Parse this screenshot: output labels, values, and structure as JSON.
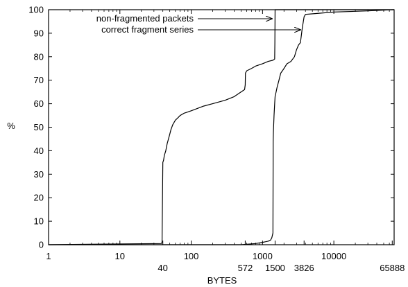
{
  "chart_data": {
    "type": "line",
    "title": "",
    "xlabel": "BYTES",
    "ylabel": "%",
    "x_scale": "log",
    "xlim": [
      1,
      70000
    ],
    "ylim": [
      0,
      100
    ],
    "x_ticks_top": [
      "1",
      "10",
      "100",
      "1000",
      "10000"
    ],
    "x_ticks_bottom": [
      "40",
      "572",
      "1500",
      "3826",
      "65888"
    ],
    "y_ticks": [
      "0",
      "10",
      "20",
      "30",
      "40",
      "50",
      "60",
      "70",
      "80",
      "90",
      "100"
    ],
    "grid": false,
    "series": [
      {
        "name": "non-fragmented packets",
        "x": [
          1,
          38,
          39,
          40,
          41,
          42,
          44,
          46,
          48,
          50,
          52,
          55,
          60,
          65,
          70,
          80,
          90,
          100,
          150,
          200,
          300,
          400,
          500,
          560,
          572,
          576,
          600,
          700,
          800,
          1000,
          1200,
          1400,
          1480,
          1490,
          1500,
          70000
        ],
        "y": [
          0,
          0.5,
          1,
          35,
          36,
          38,
          40,
          43,
          45,
          47,
          49,
          51,
          53,
          54,
          55,
          56,
          56.5,
          57,
          59,
          60,
          61.5,
          63,
          65,
          66,
          68,
          73,
          74,
          75,
          76,
          77,
          78,
          78.5,
          79,
          86,
          100,
          100
        ]
      },
      {
        "name": "correct fragment series",
        "x": [
          1,
          500,
          800,
          1000,
          1200,
          1300,
          1350,
          1400,
          1410,
          1420,
          1450,
          1480,
          1500,
          1550,
          1600,
          1700,
          1800,
          1900,
          2000,
          2200,
          2500,
          2800,
          3000,
          3200,
          3400,
          3600,
          3826,
          4000,
          10000,
          30000,
          65888,
          70000
        ],
        "y": [
          0,
          0,
          0.5,
          1,
          1.5,
          2,
          3,
          5,
          44,
          48,
          55,
          60,
          63,
          65,
          67,
          70,
          73,
          74,
          75,
          77,
          78,
          80,
          83,
          85,
          86,
          92,
          97,
          98,
          99,
          99.5,
          100,
          100
        ]
      }
    ],
    "annotations": [
      {
        "text": "non-fragmented packets",
        "points_to_series": 0
      },
      {
        "text": "correct fragment series",
        "points_to_series": 1
      }
    ]
  }
}
